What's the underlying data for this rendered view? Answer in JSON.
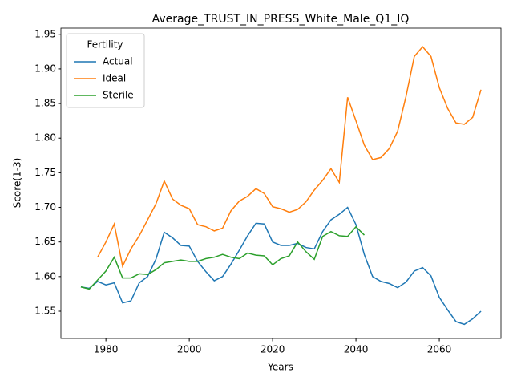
{
  "chart_data": {
    "type": "line",
    "title": "Average_TRUST_IN_PRESS_White_Male_Q1_IQ",
    "x_label": "Years",
    "y_label": "Score(1-3)",
    "legend_title": "Fertility",
    "legend_position": "upper left",
    "grid": false,
    "x": [
      1974,
      1976,
      1978,
      1980,
      1982,
      1984,
      1986,
      1988,
      1990,
      1992,
      1994,
      1996,
      1998,
      2000,
      2002,
      2004,
      2006,
      2008,
      2010,
      2012,
      2014,
      2016,
      2018,
      2020,
      2022,
      2024,
      2026,
      2028,
      2030,
      2032,
      2034,
      2036,
      2038,
      2040,
      2042,
      2044,
      2046,
      2048,
      2050,
      2052,
      2054,
      2056,
      2058,
      2060,
      2062,
      2064,
      2066,
      2068,
      2070
    ],
    "series": [
      {
        "name": "Actual",
        "color": "#1f77b4",
        "values": [
          1.585,
          1.583,
          1.593,
          1.588,
          1.591,
          1.562,
          1.565,
          1.591,
          1.6,
          1.625,
          1.664,
          1.656,
          1.645,
          1.644,
          1.622,
          1.607,
          1.594,
          1.6,
          1.618,
          1.638,
          1.659,
          1.677,
          1.676,
          1.65,
          1.645,
          1.645,
          1.648,
          1.642,
          1.64,
          1.665,
          1.682,
          1.69,
          1.7,
          1.675,
          1.632,
          1.6,
          1.593,
          1.59,
          1.584,
          1.592,
          1.608,
          1.613,
          1.601,
          1.57,
          1.552,
          1.535,
          1.531,
          1.539,
          1.55
        ]
      },
      {
        "name": "Ideal",
        "color": "#ff7f0e",
        "values": [
          null,
          null,
          1.628,
          1.65,
          1.676,
          1.615,
          1.64,
          1.659,
          1.682,
          1.705,
          1.738,
          1.712,
          1.703,
          1.698,
          1.675,
          1.672,
          1.666,
          1.67,
          1.695,
          1.709,
          1.716,
          1.727,
          1.72,
          1.701,
          1.698,
          1.693,
          1.697,
          1.708,
          1.725,
          1.739,
          1.756,
          1.736,
          1.859,
          1.825,
          1.79,
          1.769,
          1.772,
          1.785,
          1.81,
          1.86,
          1.918,
          1.932,
          1.918,
          1.873,
          1.843,
          1.822,
          1.82,
          1.83,
          1.87
        ]
      },
      {
        "name": "Sterile",
        "color": "#2ca02c",
        "values": [
          1.585,
          1.582,
          1.595,
          1.608,
          1.628,
          1.598,
          1.598,
          1.604,
          1.603,
          1.61,
          1.62,
          1.622,
          1.624,
          1.622,
          1.622,
          1.626,
          1.628,
          1.632,
          1.628,
          1.626,
          1.634,
          1.631,
          1.63,
          1.617,
          1.626,
          1.63,
          1.65,
          1.636,
          1.625,
          1.658,
          1.665,
          1.659,
          1.658,
          1.672,
          1.66,
          null,
          null,
          null,
          null,
          null,
          null,
          null,
          null,
          null,
          null,
          null,
          null,
          null,
          null
        ]
      }
    ],
    "xlim": [
      1969.2,
      2074.8
    ],
    "xticks": [
      1980,
      2000,
      2020,
      2040,
      2060
    ],
    "ylim": [
      1.5106,
      1.959
    ],
    "yticks": [
      1.55,
      {
        "value": 1.6,
        "label": "1.60"
      },
      1.65,
      {
        "value": 1.7,
        "label": "1.70"
      },
      1.75,
      {
        "value": 1.8,
        "label": "1.80"
      },
      1.85,
      {
        "value": 1.9,
        "label": "1.90"
      },
      1.95
    ]
  }
}
